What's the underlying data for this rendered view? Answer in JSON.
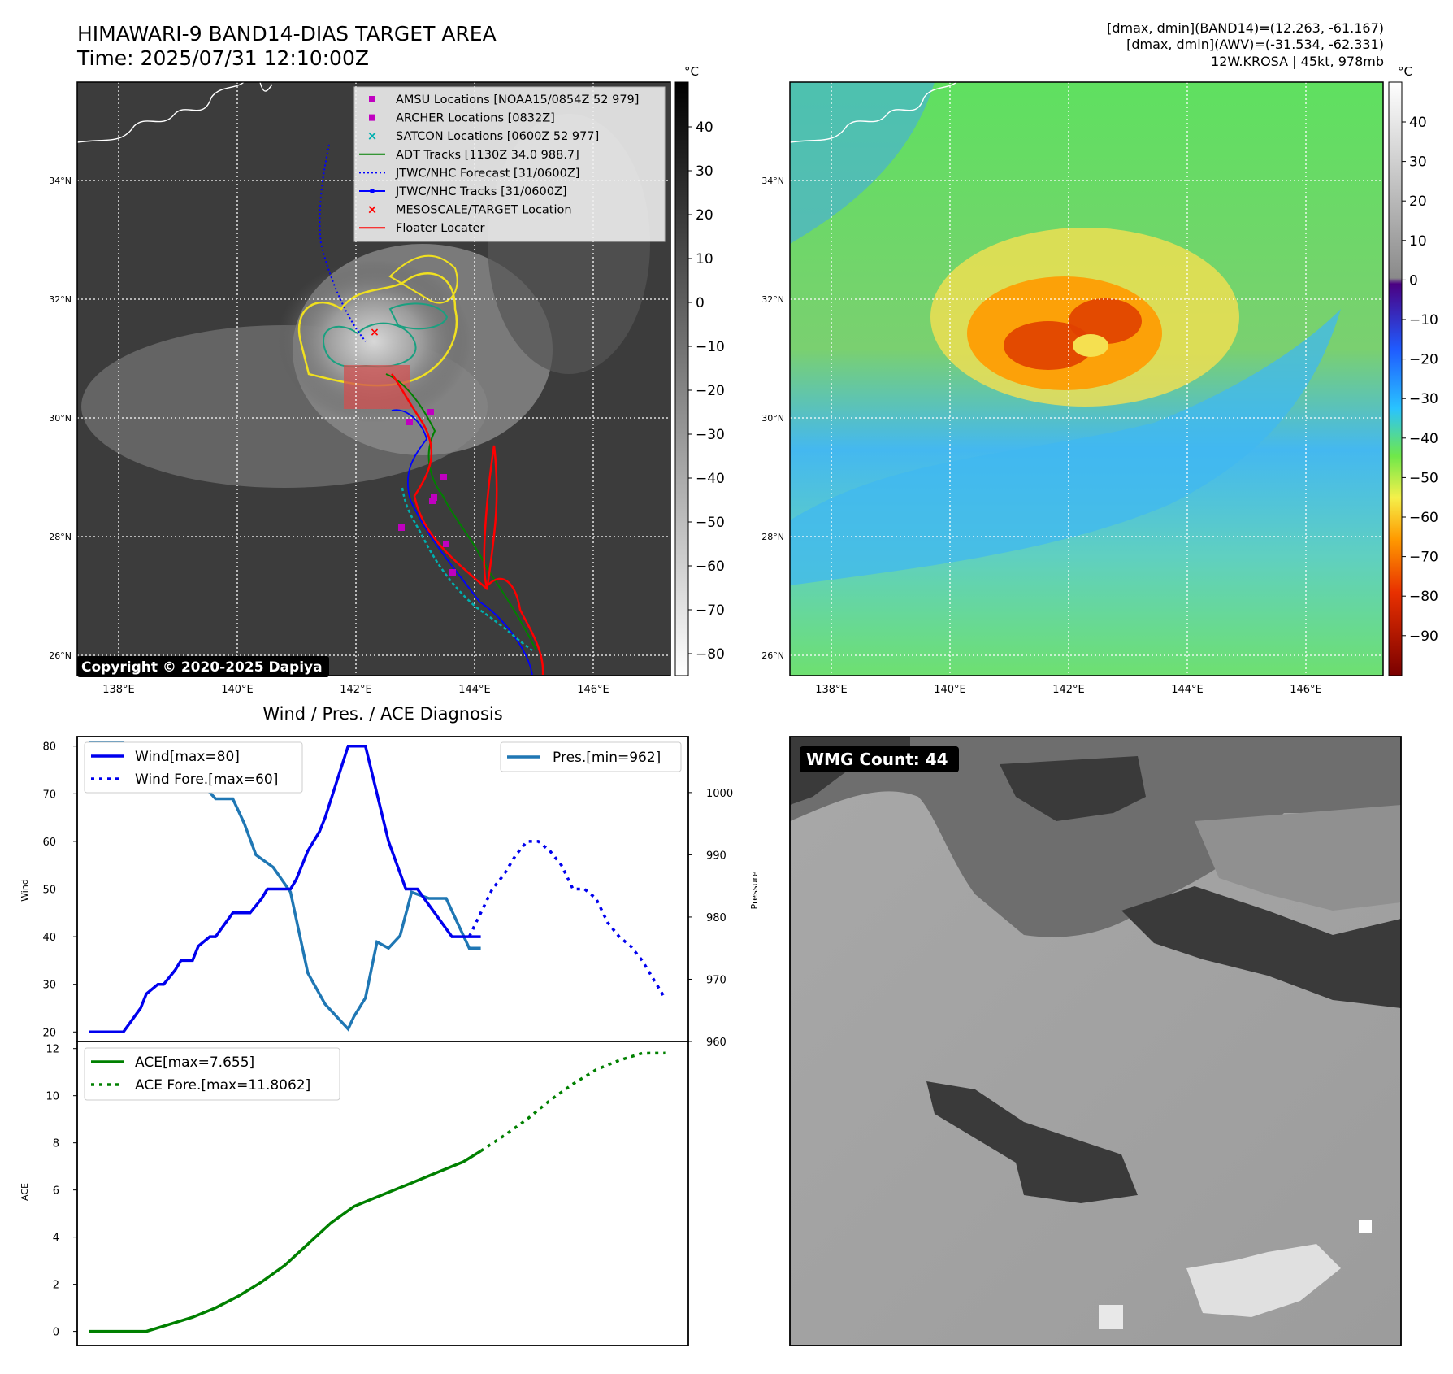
{
  "header": {
    "title": "HIMAWARI-9 BAND14-DIAS TARGET AREA",
    "time": "Time: 2025/07/31 12:10:00Z",
    "stats_band14": "[dmax, dmin](BAND14)=(12.263, -61.167)",
    "stats_awv": "[dmax, dmin](AWV)=(-31.534, -62.331)",
    "storm": "12W.KROSA | 45kt, 978mb"
  },
  "colors": {
    "wind": "#0000ee",
    "pressure": "#1f77b4",
    "ace": "#008000",
    "adt": "#008000",
    "jtwc": "#0000ff",
    "floater": "#ff0000",
    "amsu": "#c000c0",
    "satcon": "#00b0b0"
  },
  "map_axes": {
    "lat_labels": [
      "34°N",
      "32°N",
      "30°N",
      "28°N",
      "26°N"
    ],
    "lon_labels": [
      "138°E",
      "140°E",
      "142°E",
      "144°E",
      "146°E"
    ]
  },
  "ir_panel": {
    "unit": "°C",
    "colorbar_ticks": [
      "40",
      "30",
      "20",
      "10",
      "0",
      "−10",
      "−20",
      "−30",
      "−40",
      "−50",
      "−60",
      "−70",
      "−80"
    ],
    "copyright": "Copyright © 2020-2025 Dapiya",
    "legend": [
      {
        "marker": "square-magenta",
        "label": "AMSU Locations [NOAA15/0854Z 52 979]"
      },
      {
        "marker": "square-magenta",
        "label": "ARCHER Locations [0832Z]"
      },
      {
        "marker": "x-cyan",
        "label": "SATCON Locations [0600Z 52 977]"
      },
      {
        "marker": "line-green",
        "label": "ADT Tracks [1130Z 34.0 988.7]"
      },
      {
        "marker": "dotted-blue",
        "label": "JTWC/NHC Forecast [31/0600Z]"
      },
      {
        "marker": "line-dot-blue",
        "label": "JTWC/NHC Tracks [31/0600Z]"
      },
      {
        "marker": "x-red",
        "label": "MESOSCALE/TARGET Location"
      },
      {
        "marker": "line-red",
        "label": "Floater Locater"
      }
    ]
  },
  "wv_panel": {
    "unit": "°C",
    "colorbar_ticks": [
      "40",
      "30",
      "20",
      "10",
      "0",
      "−10",
      "−20",
      "−30",
      "−40",
      "−50",
      "−60",
      "−70",
      "−80",
      "−90"
    ]
  },
  "wmg_panel": {
    "label": "WMG Count: 44"
  },
  "diagnosis_panel": {
    "title": "Wind / Pres. / ACE Diagnosis"
  },
  "chart_data": [
    {
      "type": "line",
      "name": "wind-pressure",
      "ylabel": "Wind",
      "ylabel_right": "Pressure",
      "ylim": [
        18,
        82
      ],
      "ylim_right": [
        960,
        1009
      ],
      "yticks": [
        20,
        30,
        40,
        50,
        60,
        70,
        80
      ],
      "yticks_right": [
        960,
        970,
        980,
        990,
        1000
      ],
      "xlim": [
        -2,
        104
      ],
      "grid": false,
      "legend_left": [
        "Wind[max=80]",
        "Wind Fore.[max=60]"
      ],
      "legend_right": [
        "Pres.[min=962]"
      ],
      "series": [
        {
          "name": "Wind[max=80]",
          "style": "solid",
          "x": [
            0,
            6,
            9,
            10,
            12,
            13,
            15,
            16,
            18,
            19,
            21,
            22,
            25,
            28,
            30,
            31,
            32,
            33,
            34,
            35,
            36,
            38,
            40,
            41,
            45,
            48,
            50,
            52,
            55,
            57,
            63,
            66,
            68
          ],
          "y": [
            20,
            20,
            25,
            28,
            30,
            30,
            33,
            35,
            35,
            38,
            40,
            40,
            45,
            45,
            48,
            50,
            50,
            50,
            50,
            50,
            52,
            58,
            62,
            65,
            80,
            80,
            70,
            60,
            50,
            50,
            40,
            40,
            40
          ]
        },
        {
          "name": "Wind Fore.[max=60]",
          "style": "dotted",
          "x": [
            66,
            68,
            70,
            72,
            73,
            74,
            76,
            78,
            80,
            82,
            84,
            86,
            88,
            90,
            92,
            94,
            96,
            98,
            100
          ],
          "y": [
            40,
            45,
            50,
            53,
            55,
            57,
            60,
            60,
            58,
            55,
            50,
            50,
            48,
            43,
            40,
            38,
            35,
            31,
            27
          ]
        },
        {
          "name": "Pres.[min=962]",
          "style": "solid",
          "axis": "right",
          "x": [
            0,
            6,
            8,
            10,
            13,
            15,
            18,
            20,
            22,
            25,
            27,
            29,
            32,
            35,
            38,
            41,
            45,
            46,
            48,
            50,
            52,
            54,
            56,
            59,
            62,
            64,
            66,
            68
          ],
          "y": [
            1008,
            1008,
            1007,
            1005,
            1004,
            1003,
            1001,
            1001,
            999,
            999,
            995,
            990,
            988,
            984,
            971,
            966,
            962,
            964,
            967,
            976,
            975,
            977,
            984,
            983,
            983,
            979,
            975,
            975
          ]
        }
      ]
    },
    {
      "type": "line",
      "name": "ace",
      "ylabel": "ACE",
      "ylim": [
        -0.6,
        12.3
      ],
      "yticks": [
        0,
        2,
        4,
        6,
        8,
        10,
        12
      ],
      "xlim": [
        -2,
        104
      ],
      "grid": false,
      "legend": [
        "ACE[max=7.655]",
        "ACE Fore.[max=11.8062]"
      ],
      "series": [
        {
          "name": "ACE[max=7.655]",
          "style": "solid",
          "x": [
            0,
            6,
            10,
            14,
            18,
            22,
            26,
            30,
            34,
            38,
            42,
            46,
            50,
            55,
            60,
            65,
            68
          ],
          "y": [
            0,
            0,
            0,
            0.3,
            0.6,
            1.0,
            1.5,
            2.1,
            2.8,
            3.7,
            4.6,
            5.3,
            5.7,
            6.2,
            6.7,
            7.2,
            7.655
          ]
        },
        {
          "name": "ACE Fore.[max=11.8062]",
          "style": "dotted",
          "x": [
            68,
            72,
            76,
            80,
            84,
            88,
            92,
            96,
            100
          ],
          "y": [
            7.655,
            8.3,
            9.0,
            9.8,
            10.5,
            11.1,
            11.5,
            11.8,
            11.8062
          ]
        }
      ]
    }
  ]
}
